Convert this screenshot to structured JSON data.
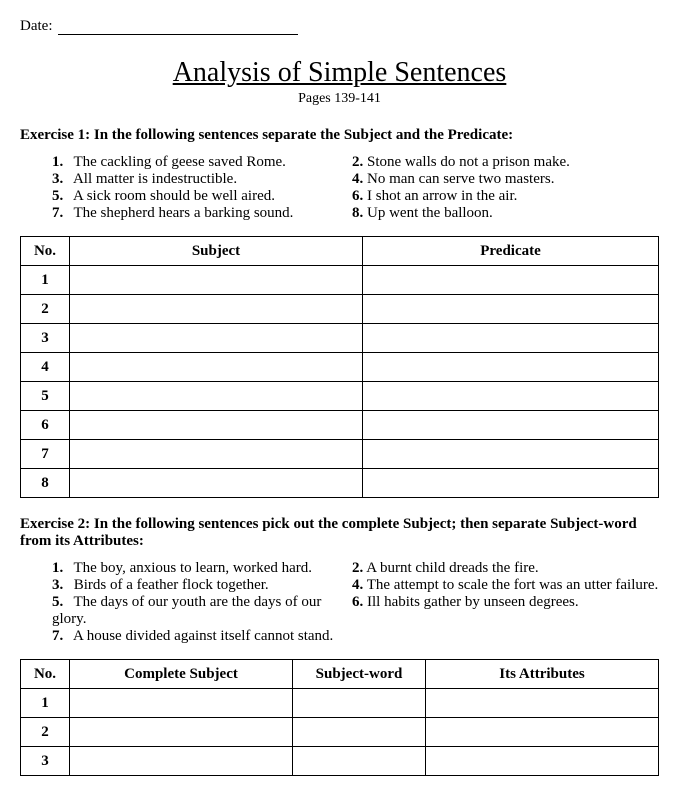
{
  "date_label": "Date:",
  "title": "Analysis of Simple Sentences",
  "subtitle": "Pages 139-141",
  "ex1": {
    "header": "Exercise 1: In the following sentences separate the Subject and the Predicate:",
    "sentences": [
      {
        "n": "1.",
        "t": "The cackling of geese saved Rome."
      },
      {
        "n": "2.",
        "t": "Stone walls do not a prison make."
      },
      {
        "n": "3.",
        "t": "All matter is indestructible."
      },
      {
        "n": "4.",
        "t": "No man can serve two masters."
      },
      {
        "n": "5.",
        "t": "A sick room should be well aired."
      },
      {
        "n": "6.",
        "t": "I shot an arrow in the air."
      },
      {
        "n": "7.",
        "t": "The shepherd hears a barking sound."
      },
      {
        "n": "8.",
        "t": "Up went the balloon."
      }
    ],
    "table": {
      "cols": [
        "No.",
        "Subject",
        "Predicate"
      ],
      "rows": [
        "1",
        "2",
        "3",
        "4",
        "5",
        "6",
        "7",
        "8"
      ]
    }
  },
  "ex2": {
    "header": "Exercise 2: In the following sentences pick out the complete Subject; then separate Subject-word from its Attributes:",
    "sentences": [
      {
        "n": "1.",
        "t": "The boy, anxious to learn, worked hard."
      },
      {
        "n": "2.",
        "t": "A burnt child dreads the fire."
      },
      {
        "n": "3.",
        "t": "Birds of a feather flock together."
      },
      {
        "n": "4.",
        "t": "The attempt to scale the fort was an utter failure."
      },
      {
        "n": "5.",
        "t": " The days of our youth are the days of our glory."
      },
      {
        "n": "6.",
        "t": "Ill habits gather by unseen degrees."
      },
      {
        "n": "7.",
        "t": "A house divided against itself cannot stand."
      },
      {
        "n": "",
        "t": ""
      }
    ],
    "table": {
      "cols": [
        "No.",
        "Complete Subject",
        "Subject-word",
        "Its Attributes"
      ],
      "rows": [
        "1",
        "2",
        "3"
      ]
    }
  }
}
